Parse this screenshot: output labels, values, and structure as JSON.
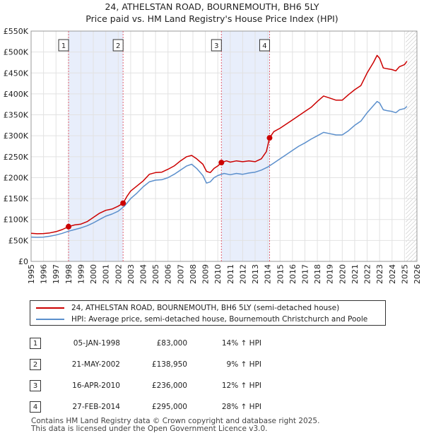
{
  "header": {
    "title_line1": "24, ATHELSTAN ROAD, BOURNEMOUTH, BH6 5LY",
    "title_line2": "Price paid vs. HM Land Registry's House Price Index (HPI)"
  },
  "legend": {
    "red_label": "24, ATHELSTAN ROAD, BOURNEMOUTH, BH6 5LY (semi-detached house)",
    "blue_label": "HPI: Average price, semi-detached house, Bournemouth Christchurch and Poole"
  },
  "colors": {
    "red": "#cc0000",
    "blue": "#5b8fcc",
    "shade": "#e8eefb",
    "marker_dash": "#e06070"
  },
  "sales": [
    {
      "num": "1",
      "date": "05-JAN-1998",
      "price": "£83,000",
      "hpi": "14% ↑ HPI"
    },
    {
      "num": "2",
      "date": "21-MAY-2002",
      "price": "£138,950",
      "hpi": "9% ↑ HPI"
    },
    {
      "num": "3",
      "date": "16-APR-2010",
      "price": "£236,000",
      "hpi": "12% ↑ HPI"
    },
    {
      "num": "4",
      "date": "27-FEB-2014",
      "price": "£295,000",
      "hpi": "28% ↑ HPI"
    }
  ],
  "footer": {
    "line1": "Contains HM Land Registry data © Crown copyright and database right 2025.",
    "line2": "This data is licensed under the Open Government Licence v3.0."
  },
  "chart_data": {
    "type": "line",
    "title": "24, ATHELSTAN ROAD, BOURNEMOUTH, BH6 5LY",
    "subtitle": "Price paid vs. HM Land Registry's House Price Index (HPI)",
    "xlim": [
      1995,
      2026
    ],
    "ylim": [
      0,
      550000
    ],
    "x_ticks": [
      "1995",
      "1996",
      "1997",
      "1998",
      "1999",
      "2000",
      "2001",
      "2002",
      "2003",
      "2004",
      "2005",
      "2006",
      "2007",
      "2008",
      "2009",
      "2010",
      "2011",
      "2012",
      "2013",
      "2014",
      "2015",
      "2016",
      "2017",
      "2018",
      "2019",
      "2020",
      "2021",
      "2022",
      "2023",
      "2024",
      "2025",
      "2026"
    ],
    "y_ticks": [
      {
        "value": 0,
        "label": "£0"
      },
      {
        "value": 50000,
        "label": "£50K"
      },
      {
        "value": 100000,
        "label": "£100K"
      },
      {
        "value": 150000,
        "label": "£150K"
      },
      {
        "value": 200000,
        "label": "£200K"
      },
      {
        "value": 250000,
        "label": "£250K"
      },
      {
        "value": 300000,
        "label": "£300K"
      },
      {
        "value": 350000,
        "label": "£350K"
      },
      {
        "value": 400000,
        "label": "£400K"
      },
      {
        "value": 450000,
        "label": "£450K"
      },
      {
        "value": 500000,
        "label": "£500K"
      },
      {
        "value": 550000,
        "label": "£550K"
      }
    ],
    "grid": true,
    "shaded_periods": [
      [
        1998.01,
        2002.39
      ],
      [
        2010.29,
        2014.16
      ]
    ],
    "hatched_from": 2025.1,
    "sale_markers": [
      {
        "label": "1",
        "x": 1998.01,
        "y": 83000
      },
      {
        "label": "2",
        "x": 2002.39,
        "y": 138950
      },
      {
        "label": "3",
        "x": 2010.29,
        "y": 236000
      },
      {
        "label": "4",
        "x": 2014.16,
        "y": 295000
      }
    ],
    "series": [
      {
        "name": "24, ATHELSTAN ROAD, BOURNEMOUTH, BH6 5LY (semi-detached house)",
        "color": "#cc0000",
        "points": [
          [
            1995.0,
            67000
          ],
          [
            1995.5,
            66000
          ],
          [
            1996.0,
            66500
          ],
          [
            1996.5,
            68000
          ],
          [
            1997.0,
            71000
          ],
          [
            1997.5,
            76000
          ],
          [
            1998.01,
            83000
          ],
          [
            1998.5,
            87000
          ],
          [
            1999.0,
            89000
          ],
          [
            1999.5,
            95000
          ],
          [
            2000.0,
            105000
          ],
          [
            2000.5,
            115000
          ],
          [
            2001.0,
            122000
          ],
          [
            2001.5,
            125000
          ],
          [
            2002.0,
            132000
          ],
          [
            2002.39,
            138950
          ],
          [
            2002.7,
            155000
          ],
          [
            2003.0,
            168000
          ],
          [
            2003.5,
            180000
          ],
          [
            2004.0,
            192000
          ],
          [
            2004.5,
            208000
          ],
          [
            2005.0,
            212000
          ],
          [
            2005.5,
            213000
          ],
          [
            2006.0,
            220000
          ],
          [
            2006.5,
            228000
          ],
          [
            2007.0,
            240000
          ],
          [
            2007.5,
            250000
          ],
          [
            2007.9,
            253000
          ],
          [
            2008.3,
            245000
          ],
          [
            2008.8,
            232000
          ],
          [
            2009.1,
            215000
          ],
          [
            2009.4,
            212000
          ],
          [
            2009.7,
            222000
          ],
          [
            2010.0,
            228000
          ],
          [
            2010.29,
            236000
          ],
          [
            2010.7,
            240000
          ],
          [
            2011.0,
            237000
          ],
          [
            2011.5,
            240000
          ],
          [
            2012.0,
            238000
          ],
          [
            2012.5,
            240000
          ],
          [
            2013.0,
            238000
          ],
          [
            2013.5,
            245000
          ],
          [
            2013.9,
            262000
          ],
          [
            2014.16,
            295000
          ],
          [
            2014.5,
            310000
          ],
          [
            2015.0,
            318000
          ],
          [
            2015.5,
            328000
          ],
          [
            2016.0,
            338000
          ],
          [
            2016.5,
            348000
          ],
          [
            2017.0,
            358000
          ],
          [
            2017.5,
            368000
          ],
          [
            2018.0,
            382000
          ],
          [
            2018.5,
            395000
          ],
          [
            2019.0,
            390000
          ],
          [
            2019.5,
            385000
          ],
          [
            2020.0,
            385000
          ],
          [
            2020.5,
            398000
          ],
          [
            2021.0,
            410000
          ],
          [
            2021.5,
            420000
          ],
          [
            2022.0,
            450000
          ],
          [
            2022.5,
            475000
          ],
          [
            2022.8,
            492000
          ],
          [
            2023.0,
            485000
          ],
          [
            2023.3,
            462000
          ],
          [
            2023.6,
            460000
          ],
          [
            2024.0,
            458000
          ],
          [
            2024.3,
            455000
          ],
          [
            2024.6,
            465000
          ],
          [
            2025.0,
            470000
          ],
          [
            2025.2,
            478000
          ]
        ]
      },
      {
        "name": "HPI: Average price, semi-detached house, Bournemouth Christchurch and Poole",
        "color": "#5b8fcc",
        "points": [
          [
            1995.0,
            58000
          ],
          [
            1995.5,
            57500
          ],
          [
            1996.0,
            58000
          ],
          [
            1996.5,
            60000
          ],
          [
            1997.0,
            63000
          ],
          [
            1997.5,
            67000
          ],
          [
            1998.0,
            72000
          ],
          [
            1998.5,
            76000
          ],
          [
            1999.0,
            80000
          ],
          [
            1999.5,
            85000
          ],
          [
            2000.0,
            92000
          ],
          [
            2000.5,
            100000
          ],
          [
            2001.0,
            108000
          ],
          [
            2001.5,
            113000
          ],
          [
            2002.0,
            120000
          ],
          [
            2002.5,
            132000
          ],
          [
            2003.0,
            150000
          ],
          [
            2003.5,
            163000
          ],
          [
            2004.0,
            178000
          ],
          [
            2004.5,
            190000
          ],
          [
            2005.0,
            194000
          ],
          [
            2005.5,
            195000
          ],
          [
            2006.0,
            200000
          ],
          [
            2006.5,
            208000
          ],
          [
            2007.0,
            218000
          ],
          [
            2007.5,
            228000
          ],
          [
            2007.9,
            232000
          ],
          [
            2008.3,
            222000
          ],
          [
            2008.8,
            205000
          ],
          [
            2009.1,
            187000
          ],
          [
            2009.4,
            190000
          ],
          [
            2009.7,
            200000
          ],
          [
            2010.0,
            205000
          ],
          [
            2010.5,
            210000
          ],
          [
            2011.0,
            207000
          ],
          [
            2011.5,
            210000
          ],
          [
            2012.0,
            208000
          ],
          [
            2012.5,
            211000
          ],
          [
            2013.0,
            213000
          ],
          [
            2013.5,
            218000
          ],
          [
            2014.0,
            225000
          ],
          [
            2014.5,
            235000
          ],
          [
            2015.0,
            245000
          ],
          [
            2015.5,
            255000
          ],
          [
            2016.0,
            265000
          ],
          [
            2016.5,
            275000
          ],
          [
            2017.0,
            283000
          ],
          [
            2017.5,
            292000
          ],
          [
            2018.0,
            300000
          ],
          [
            2018.5,
            308000
          ],
          [
            2019.0,
            305000
          ],
          [
            2019.5,
            302000
          ],
          [
            2020.0,
            302000
          ],
          [
            2020.5,
            312000
          ],
          [
            2021.0,
            325000
          ],
          [
            2021.5,
            335000
          ],
          [
            2022.0,
            355000
          ],
          [
            2022.5,
            372000
          ],
          [
            2022.8,
            382000
          ],
          [
            2023.0,
            378000
          ],
          [
            2023.3,
            362000
          ],
          [
            2023.6,
            360000
          ],
          [
            2024.0,
            358000
          ],
          [
            2024.3,
            355000
          ],
          [
            2024.6,
            362000
          ],
          [
            2025.0,
            365000
          ],
          [
            2025.2,
            370000
          ]
        ]
      }
    ]
  }
}
